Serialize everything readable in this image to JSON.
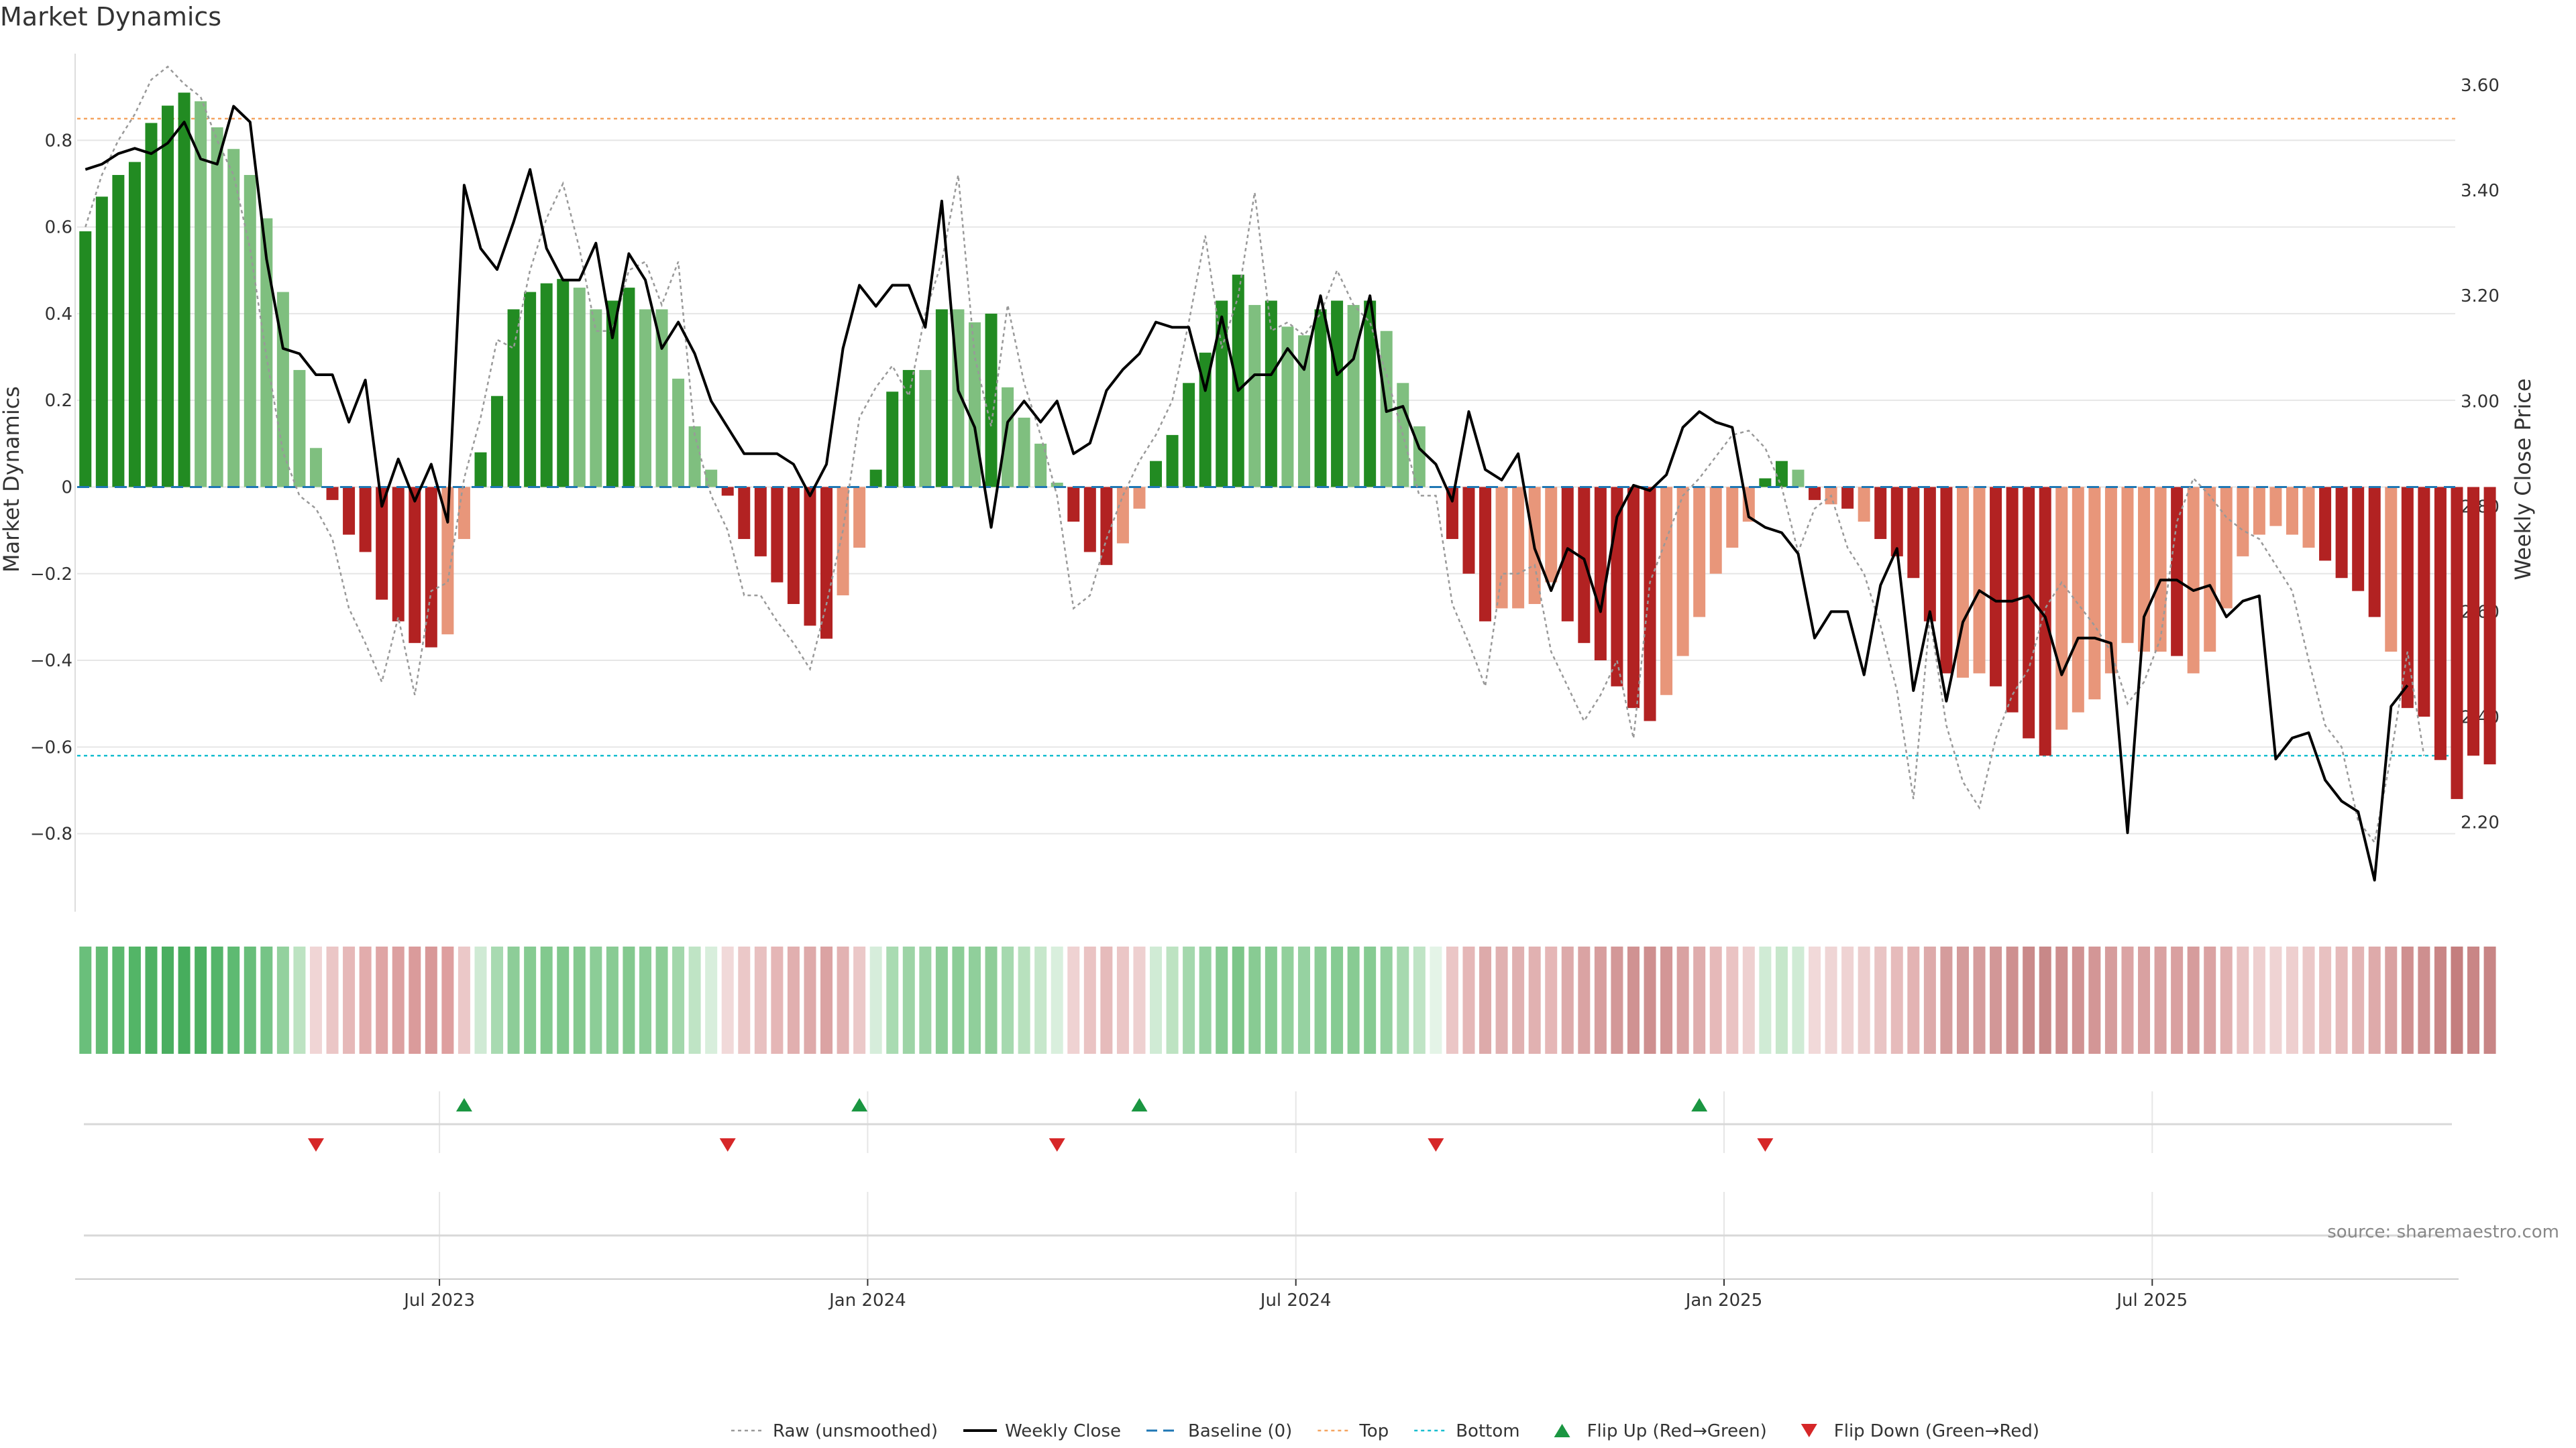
{
  "chart_data": {
    "type": "bar",
    "title": "Market Dynamics",
    "ylabel_left": "Market Dynamics",
    "ylabel_right": "Weekly Close Price",
    "ylim_left": [
      -0.98,
      1.0
    ],
    "ylim_right": [
      2.03,
      3.66
    ],
    "yticks_left": [
      0.8,
      0.6,
      0.4,
      0.2,
      0,
      -0.2,
      -0.4,
      -0.6,
      -0.8
    ],
    "ytick_labels_left": [
      "0.8",
      "0.6",
      "0.4",
      "0.2",
      "0",
      "−0.2",
      "−0.4",
      "−0.6",
      "−0.8"
    ],
    "yticks_right": [
      3.6,
      3.4,
      3.2,
      3.0,
      2.8,
      2.6,
      2.4,
      2.2
    ],
    "ytick_labels_right": [
      "3.60",
      "3.40",
      "3.20",
      "3.00",
      "2.80",
      "2.60",
      "2.40",
      "2.20"
    ],
    "x_tick_positions": [
      22,
      48,
      74,
      100,
      126,
      152
    ],
    "x_tick_labels": [
      "Jul 2023",
      "Jan 2024",
      "Jul 2024",
      "Jan 2025",
      "Jul 2025",
      ""
    ],
    "reference_lines": {
      "top": 0.85,
      "bottom": -0.62,
      "baseline": 0
    },
    "bar_values": [
      0.59,
      0.67,
      0.72,
      0.75,
      0.84,
      0.88,
      0.91,
      0.89,
      0.83,
      0.78,
      0.72,
      0.62,
      0.45,
      0.27,
      0.09,
      -0.03,
      -0.11,
      -0.15,
      -0.26,
      -0.31,
      -0.36,
      -0.37,
      -0.34,
      -0.12,
      0.08,
      0.21,
      0.41,
      0.45,
      0.47,
      0.48,
      0.46,
      0.41,
      0.43,
      0.46,
      0.41,
      0.41,
      0.25,
      0.14,
      0.04,
      -0.02,
      -0.12,
      -0.16,
      -0.22,
      -0.27,
      -0.32,
      -0.35,
      -0.25,
      -0.14,
      0.04,
      0.22,
      0.27,
      0.27,
      0.41,
      0.41,
      0.38,
      0.4,
      0.23,
      0.16,
      0.1,
      0.01,
      -0.08,
      -0.15,
      -0.18,
      -0.13,
      -0.05,
      0.06,
      0.12,
      0.24,
      0.31,
      0.43,
      0.49,
      0.42,
      0.43,
      0.37,
      0.35,
      0.41,
      0.43,
      0.42,
      0.43,
      0.36,
      0.24,
      0.14,
      0.0,
      -0.12,
      -0.2,
      -0.31,
      -0.28,
      -0.28,
      -0.27,
      -0.22,
      -0.31,
      -0.36,
      -0.4,
      -0.46,
      -0.51,
      -0.54,
      -0.48,
      -0.39,
      -0.3,
      -0.2,
      -0.14,
      -0.08,
      0.02,
      0.06,
      0.04,
      -0.03,
      -0.04,
      -0.05,
      -0.08,
      -0.12,
      -0.16,
      -0.21,
      -0.31,
      -0.43,
      -0.44,
      -0.43,
      -0.46,
      -0.52,
      -0.58,
      -0.62,
      -0.56,
      -0.52,
      -0.49,
      -0.43,
      -0.36,
      -0.38,
      -0.38,
      -0.39,
      -0.43,
      -0.38,
      -0.28,
      -0.16,
      -0.11,
      -0.09,
      -0.11,
      -0.14,
      -0.17,
      -0.21,
      -0.24,
      -0.3,
      -0.38,
      -0.51,
      -0.53,
      -0.63,
      -0.72,
      -0.62,
      -0.64
    ],
    "bar_colors": [
      "dg",
      "dg",
      "dg",
      "dg",
      "dg",
      "dg",
      "dg",
      "lg",
      "lg",
      "lg",
      "lg",
      "lg",
      "lg",
      "lg",
      "lg",
      "dr",
      "dr",
      "dr",
      "dr",
      "dr",
      "dr",
      "dr",
      "lr",
      "lr",
      "dg",
      "dg",
      "dg",
      "dg",
      "dg",
      "dg",
      "lg",
      "lg",
      "dg",
      "dg",
      "lg",
      "lg",
      "lg",
      "lg",
      "lg",
      "dr",
      "dr",
      "dr",
      "dr",
      "dr",
      "dr",
      "dr",
      "lr",
      "lr",
      "dg",
      "dg",
      "dg",
      "lg",
      "dg",
      "lg",
      "lg",
      "dg",
      "lg",
      "lg",
      "lg",
      "lg",
      "dr",
      "dr",
      "dr",
      "lr",
      "lr",
      "dg",
      "dg",
      "dg",
      "dg",
      "dg",
      "dg",
      "lg",
      "dg",
      "lg",
      "lg",
      "dg",
      "dg",
      "lg",
      "dg",
      "lg",
      "lg",
      "lg",
      "lg",
      "dr",
      "dr",
      "dr",
      "lr",
      "lr",
      "lr",
      "lr",
      "dr",
      "dr",
      "dr",
      "dr",
      "dr",
      "dr",
      "lr",
      "lr",
      "lr",
      "lr",
      "lr",
      "lr",
      "dg",
      "dg",
      "lg",
      "dr",
      "lr",
      "dr",
      "lr",
      "dr",
      "dr",
      "dr",
      "dr",
      "dr",
      "lr",
      "lr",
      "dr",
      "dr",
      "dr",
      "dr",
      "lr",
      "lr",
      "lr",
      "lr",
      "lr",
      "lr",
      "lr",
      "dr",
      "lr",
      "lr",
      "lr",
      "lr",
      "lr",
      "lr",
      "lr",
      "lr",
      "dr",
      "dr",
      "dr",
      "dr",
      "lr",
      "dr",
      "dr",
      "dr",
      "dr",
      "dr",
      "dr",
      "lr"
    ],
    "raw_values": [
      0.6,
      0.72,
      0.8,
      0.86,
      0.94,
      0.97,
      0.93,
      0.9,
      0.8,
      0.72,
      0.55,
      0.3,
      0.08,
      -0.02,
      -0.05,
      -0.12,
      -0.28,
      -0.36,
      -0.45,
      -0.3,
      -0.48,
      -0.24,
      -0.22,
      0.02,
      0.16,
      0.34,
      0.32,
      0.5,
      0.62,
      0.7,
      0.55,
      0.36,
      0.36,
      0.5,
      0.52,
      0.42,
      0.52,
      0.12,
      -0.02,
      -0.1,
      -0.25,
      -0.25,
      -0.31,
      -0.36,
      -0.42,
      -0.27,
      -0.1,
      0.16,
      0.23,
      0.28,
      0.21,
      0.4,
      0.52,
      0.72,
      0.3,
      0.14,
      0.42,
      0.24,
      0.12,
      -0.02,
      -0.28,
      -0.25,
      -0.12,
      -0.02,
      0.06,
      0.12,
      0.2,
      0.38,
      0.58,
      0.32,
      0.44,
      0.68,
      0.36,
      0.38,
      0.35,
      0.4,
      0.5,
      0.42,
      0.38,
      0.26,
      0.12,
      -0.02,
      -0.02,
      -0.27,
      -0.36,
      -0.46,
      -0.2,
      -0.2,
      -0.18,
      -0.38,
      -0.46,
      -0.54,
      -0.48,
      -0.4,
      -0.58,
      -0.22,
      -0.12,
      -0.02,
      0.02,
      0.07,
      0.12,
      0.13,
      0.09,
      0.0,
      -0.15,
      -0.05,
      -0.02,
      -0.14,
      -0.2,
      -0.32,
      -0.47,
      -0.72,
      -0.3,
      -0.55,
      -0.68,
      -0.74,
      -0.58,
      -0.48,
      -0.42,
      -0.28,
      -0.22,
      -0.27,
      -0.32,
      -0.38,
      -0.5,
      -0.45,
      -0.35,
      -0.08,
      0.02,
      -0.02,
      -0.07,
      -0.1,
      -0.12,
      -0.18,
      -0.24,
      -0.4,
      -0.55,
      -0.6,
      -0.77,
      -0.82,
      -0.62,
      -0.38,
      -0.62
    ],
    "close_values": [
      3.44,
      3.45,
      3.47,
      3.48,
      3.47,
      3.49,
      3.53,
      3.46,
      3.45,
      3.56,
      3.53,
      3.27,
      3.1,
      3.09,
      3.05,
      3.05,
      2.96,
      3.04,
      2.8,
      2.89,
      2.81,
      2.88,
      2.77,
      3.41,
      3.29,
      3.25,
      3.34,
      3.44,
      3.29,
      3.23,
      3.23,
      3.3,
      3.12,
      3.28,
      3.23,
      3.1,
      3.15,
      3.09,
      3.0,
      2.95,
      2.9,
      2.9,
      2.9,
      2.88,
      2.82,
      2.88,
      3.1,
      3.22,
      3.18,
      3.22,
      3.22,
      3.14,
      3.38,
      3.02,
      2.95,
      2.76,
      2.96,
      3.0,
      2.96,
      3.0,
      2.9,
      2.92,
      3.02,
      3.06,
      3.09,
      3.15,
      3.14,
      3.14,
      3.02,
      3.16,
      3.02,
      3.05,
      3.05,
      3.1,
      3.06,
      3.2,
      3.05,
      3.08,
      3.2,
      2.98,
      2.99,
      2.91,
      2.88,
      2.81,
      2.98,
      2.87,
      2.85,
      2.9,
      2.72,
      2.64,
      2.72,
      2.7,
      2.6,
      2.78,
      2.84,
      2.83,
      2.86,
      2.95,
      2.98,
      2.96,
      2.95,
      2.78,
      2.76,
      2.75,
      2.71,
      2.55,
      2.6,
      2.6,
      2.48,
      2.65,
      2.72,
      2.45,
      2.6,
      2.43,
      2.58,
      2.64,
      2.62,
      2.62,
      2.63,
      2.59,
      2.48,
      2.55,
      2.55,
      2.54,
      2.18,
      2.59,
      2.66,
      2.66,
      2.64,
      2.65,
      2.59,
      2.62,
      2.63,
      2.32,
      2.36,
      2.37,
      2.28,
      2.24,
      2.22,
      2.09,
      2.42,
      2.46
    ],
    "heat_colors": [
      "#6abf7b",
      "#64bc75",
      "#5cb86e",
      "#53b567",
      "#4fb163",
      "#4aae60",
      "#47ad5d",
      "#4cb062",
      "#55b56a",
      "#5eba72",
      "#68be7a",
      "#76c486",
      "#93d19e",
      "#bde3c2",
      "#f0d5d5",
      "#ebc6c6",
      "#e6b8b8",
      "#e2acac",
      "#dfa5a5",
      "#dca0a0",
      "#da9b9b",
      "#d89898",
      "#de9f9f",
      "#ebc8c8",
      "#cfead4",
      "#a8dab1",
      "#8dcd98",
      "#86cb92",
      "#82c98e",
      "#80c88c",
      "#84c98f",
      "#8ccd97",
      "#89cb94",
      "#84c98f",
      "#8ccd97",
      "#8ccd97",
      "#a2d7ab",
      "#bfe4c5",
      "#d8eedc",
      "#f1d9d9",
      "#ebc8c8",
      "#e8c0c0",
      "#e5b6b6",
      "#e1afaf",
      "#deaaaa",
      "#dba3a3",
      "#e2b2b2",
      "#ebc8c8",
      "#d6eddb",
      "#a9dbb2",
      "#9dd4a6",
      "#9dd4a6",
      "#8ccd97",
      "#8ccd97",
      "#90cf9b",
      "#8ecd98",
      "#a6d9af",
      "#b8e1be",
      "#c6e7cb",
      "#d9efdd",
      "#efd2d2",
      "#eac3c3",
      "#e6bbbb",
      "#ebc6c6",
      "#eed0d0",
      "#d0ebd5",
      "#bde3c2",
      "#a4d8ad",
      "#96d2a1",
      "#86cb92",
      "#7cc689",
      "#88cb93",
      "#86cb92",
      "#92d09c",
      "#96d2a1",
      "#8ccd97",
      "#86cb92",
      "#88cb93",
      "#86cb92",
      "#94d19f",
      "#a6d9af",
      "#bfe4c5",
      "#e4f4e7",
      "#ebc6c6",
      "#e5b7b7",
      "#ddaaaa",
      "#e0b0b0",
      "#e0b0b0",
      "#e1b1b1",
      "#e5b6b6",
      "#ddaaaa",
      "#daa3a3",
      "#d79e9e",
      "#d39898",
      "#d09292",
      "#ce8f8f",
      "#d39696",
      "#d9a1a1",
      "#dfadad",
      "#e6b9b9",
      "#eac3c3",
      "#eed0d0",
      "#d0ebd5",
      "#c6e7cb",
      "#d0ebd5",
      "#f1d9d9",
      "#efd5d5",
      "#efd3d3",
      "#eccdcd",
      "#e9c4c4",
      "#e6bbbb",
      "#e3b3b3",
      "#ddaaaa",
      "#d59c9c",
      "#d49b9b",
      "#d59c9c",
      "#d29797",
      "#ce9090",
      "#ca8a8a",
      "#c88888",
      "#cd8e8e",
      "#d09292",
      "#d39696",
      "#d69c9c",
      "#dba4a4",
      "#d9a1a1",
      "#d9a1a1",
      "#d9a0a0",
      "#d69c9c",
      "#daa2a2",
      "#e1b0b0",
      "#e9c3c3",
      "#eecfcf",
      "#efd3d3",
      "#eecfcf",
      "#ebc8c8",
      "#e8c1c1",
      "#e6baba",
      "#e3b4b4",
      "#deaaaa",
      "#d9a1a1",
      "#cf9090",
      "#ce8f8f",
      "#c98686",
      "#c47e7e",
      "#c98686",
      "#c88585"
    ],
    "flip_up_positions": [
      23.5,
      47.5,
      64.5,
      98.5
    ],
    "flip_down_positions": [
      14.5,
      39.5,
      59.5,
      82.5,
      102.5
    ],
    "legend": [
      {
        "label": "Raw (unsmoothed)",
        "style": "raw"
      },
      {
        "label": "Weekly Close",
        "style": "close"
      },
      {
        "label": "Baseline (0)",
        "style": "baseline"
      },
      {
        "label": "Top",
        "style": "top"
      },
      {
        "label": "Bottom",
        "style": "bottom"
      },
      {
        "label": "Flip Up (Red→Green)",
        "style": "flipup"
      },
      {
        "label": "Flip Down (Green→Red)",
        "style": "flipdown"
      }
    ],
    "source_text": "source: sharemaestro.com",
    "colors": {
      "dg": "#228b22",
      "lg": "#7fbf7f",
      "dr": "#b22222",
      "lr": "#e8967a",
      "raw": "#999999",
      "close": "#000000",
      "baseline": "#1f77b4",
      "top": "#f4a460",
      "bottom": "#17becf",
      "flipup": "#1a9641",
      "flipdown": "#d62728",
      "grid": "#e6e6e6"
    }
  }
}
